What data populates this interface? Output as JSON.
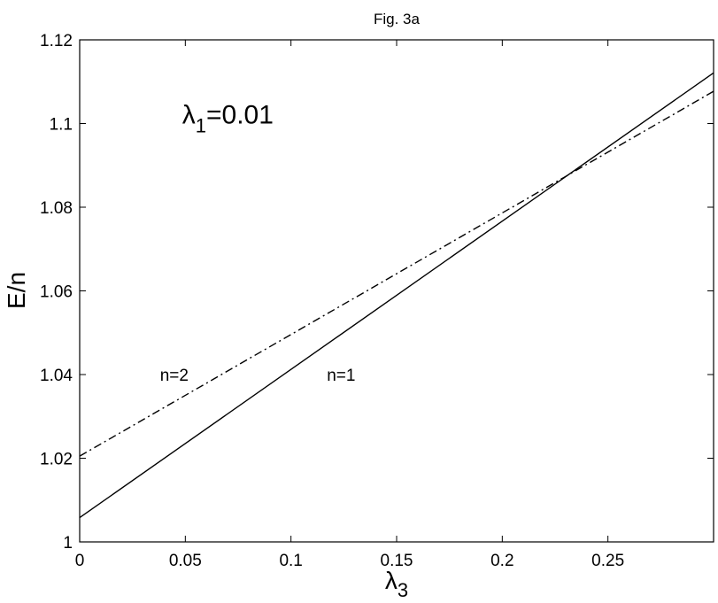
{
  "chart_data": {
    "type": "line",
    "title": "Fig. 3a",
    "xlabel": "λ",
    "xlabel_sub": "3",
    "ylabel": "E/n",
    "xlim": [
      0,
      0.3
    ],
    "ylim": [
      1,
      1.12
    ],
    "xticks": [
      0,
      0.05,
      0.1,
      0.15,
      0.2,
      0.25
    ],
    "xtick_labels": [
      "0",
      "0.05",
      "0.1",
      "0.15",
      "0.2",
      "0.25"
    ],
    "yticks": [
      1,
      1.02,
      1.04,
      1.06,
      1.08,
      1.1,
      1.12
    ],
    "ytick_labels": [
      "1",
      "1.02",
      "1.04",
      "1.06",
      "1.08",
      "1.1",
      "1.12"
    ],
    "grid": false,
    "series": [
      {
        "name": "n=1",
        "style": "solid",
        "x": [
          0,
          0.3
        ],
        "y": [
          1.0058,
          1.1121
        ]
      },
      {
        "name": "n=2",
        "style": "dashdot",
        "x": [
          0,
          0.3
        ],
        "y": [
          1.0205,
          1.1077
        ]
      }
    ],
    "annotations": [
      {
        "id": "lambda1",
        "text_main": "λ",
        "text_sub": "1",
        "text_rest": "=0.01",
        "x": 0.0485,
        "y": 1.1
      },
      {
        "id": "n2",
        "text": "n=2",
        "x": 0.038,
        "y": 1.0385
      },
      {
        "id": "n1",
        "text": "n=1",
        "x": 0.117,
        "y": 1.0385
      }
    ]
  }
}
